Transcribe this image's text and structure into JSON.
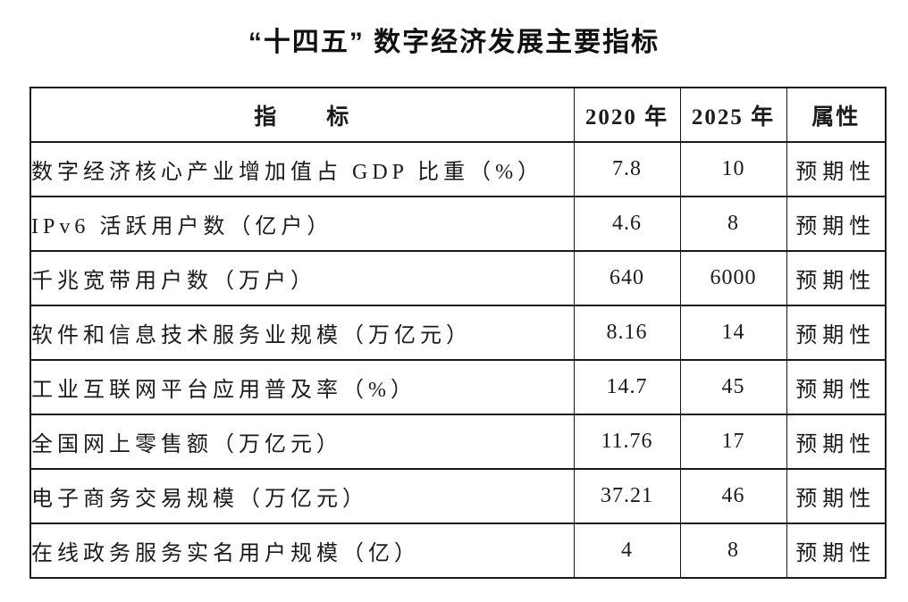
{
  "page": {
    "title": "“十四五” 数字经济发展主要指标",
    "background_color": "#ffffff",
    "text_color": "#1b1b1b",
    "border_color": "#1a1a1a"
  },
  "table": {
    "headers": {
      "indicator": "指　　标",
      "y2020": "2020 年",
      "y2025": "2025 年",
      "attribute": "属性"
    },
    "rows": [
      {
        "indicator": "数字经济核心产业增加值占 GDP 比重（%）",
        "y2020": "7.8",
        "y2025": "10",
        "attribute": "预期性"
      },
      {
        "indicator": "IPv6 活跃用户数（亿户）",
        "y2020": "4.6",
        "y2025": "8",
        "attribute": "预期性"
      },
      {
        "indicator": "千兆宽带用户数（万户）",
        "y2020": "640",
        "y2025": "6000",
        "attribute": "预期性"
      },
      {
        "indicator": "软件和信息技术服务业规模（万亿元）",
        "y2020": "8.16",
        "y2025": "14",
        "attribute": "预期性"
      },
      {
        "indicator": "工业互联网平台应用普及率（%）",
        "y2020": "14.7",
        "y2025": "45",
        "attribute": "预期性"
      },
      {
        "indicator": "全国网上零售额（万亿元）",
        "y2020": "11.76",
        "y2025": "17",
        "attribute": "预期性"
      },
      {
        "indicator": "电子商务交易规模（万亿元）",
        "y2020": "37.21",
        "y2025": "46",
        "attribute": "预期性"
      },
      {
        "indicator": "在线政务服务实名用户规模（亿）",
        "y2020": "4",
        "y2025": "8",
        "attribute": "预期性"
      }
    ]
  }
}
